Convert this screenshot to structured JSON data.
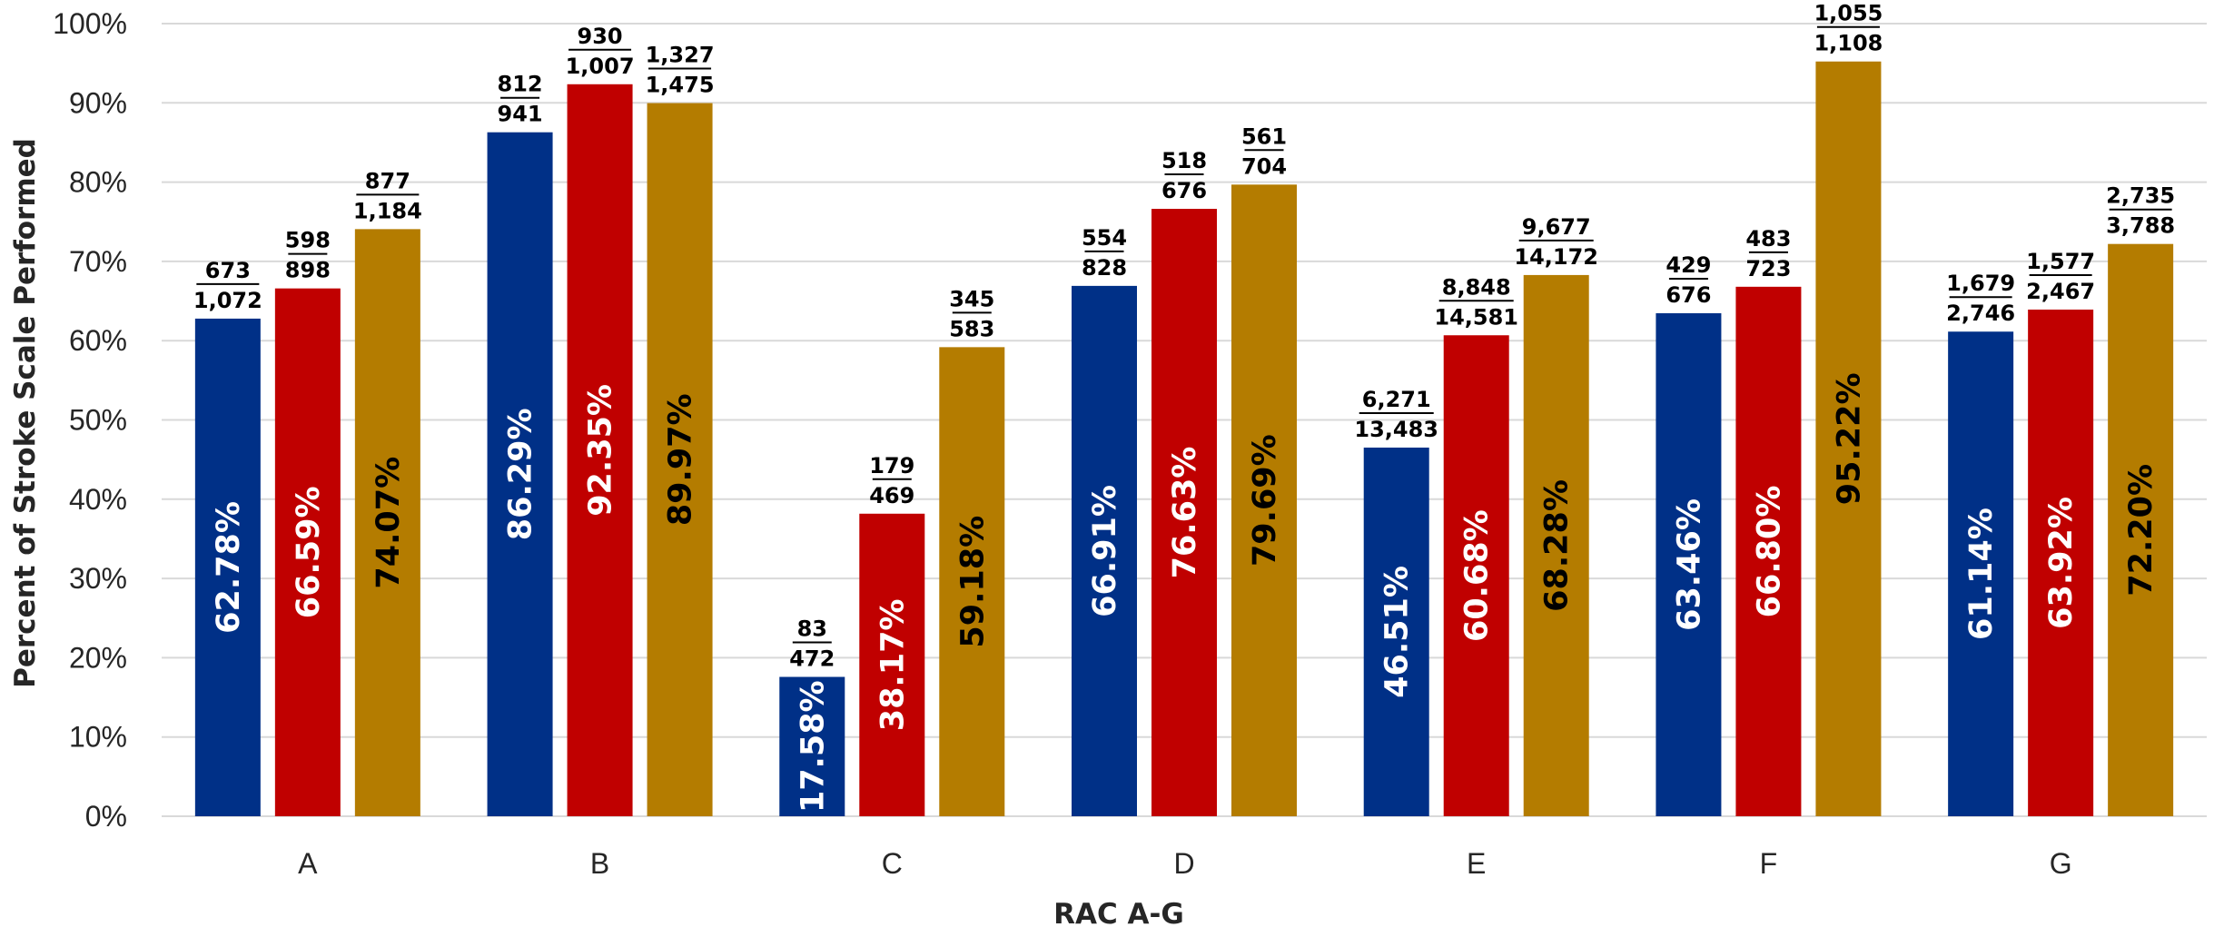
{
  "chart_data": {
    "type": "bar",
    "title": "",
    "xlabel": "RAC A-G",
    "ylabel": "Percent of Stroke Scale Performed",
    "ylim": [
      0,
      100
    ],
    "yticks": [
      "0%",
      "10%",
      "20%",
      "30%",
      "40%",
      "50%",
      "60%",
      "70%",
      "80%",
      "90%",
      "100%"
    ],
    "grid": true,
    "legend": "none",
    "categories": [
      "A",
      "B",
      "C",
      "D",
      "E",
      "F",
      "G"
    ],
    "series": [
      {
        "color": "#003087",
        "label_color": "#ffffff",
        "values": [
          62.78,
          86.29,
          17.58,
          66.91,
          46.51,
          63.46,
          61.14
        ],
        "labels": [
          "62.78%",
          "86.29%",
          "17.58%",
          "66.91%",
          "46.51%",
          "63.46%",
          "61.14%"
        ],
        "numerators": [
          "673",
          "812",
          "83",
          "554",
          "6,271",
          "429",
          "1,679"
        ],
        "denominators": [
          "1,072",
          "941",
          "472",
          "828",
          "13,483",
          "676",
          "2,746"
        ]
      },
      {
        "color": "#c00000",
        "label_color": "#ffffff",
        "values": [
          66.59,
          92.35,
          38.17,
          76.63,
          60.68,
          66.8,
          63.92
        ],
        "labels": [
          "66.59%",
          "92.35%",
          "38.17%",
          "76.63%",
          "60.68%",
          "66.80%",
          "63.92%"
        ],
        "numerators": [
          "598",
          "930",
          "179",
          "518",
          "8,848",
          "483",
          "1,577"
        ],
        "denominators": [
          "898",
          "1,007",
          "469",
          "676",
          "14,581",
          "723",
          "2,467"
        ]
      },
      {
        "color": "#b47c00",
        "label_color": "#000000",
        "values": [
          74.07,
          89.97,
          59.18,
          79.69,
          68.28,
          95.22,
          72.2
        ],
        "labels": [
          "74.07%",
          "89.97%",
          "59.18%",
          "79.69%",
          "68.28%",
          "95.22%",
          "72.20%"
        ],
        "numerators": [
          "877",
          "1,327",
          "345",
          "561",
          "9,677",
          "1,055",
          "2,735"
        ],
        "denominators": [
          "1,184",
          "1,475",
          "583",
          "704",
          "14,172",
          "1,108",
          "3,788"
        ]
      }
    ]
  }
}
